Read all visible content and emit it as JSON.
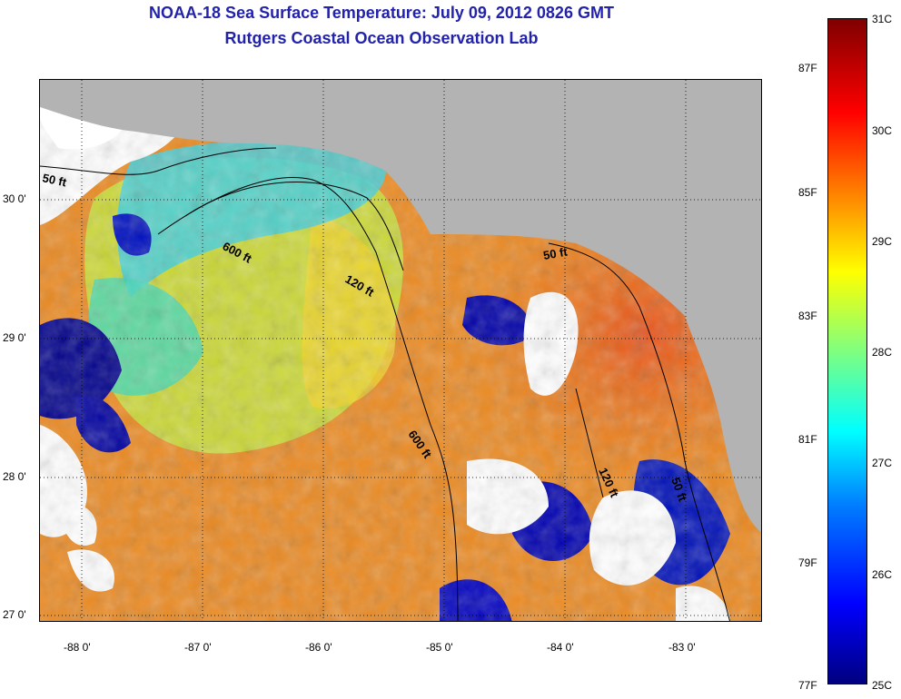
{
  "title": {
    "line1": "NOAA-18 Sea Surface Temperature:  July 09, 2012 0826 GMT",
    "line2": "Rutgers Coastal Ocean Observation Lab"
  },
  "map": {
    "x_axis_labels": [
      "-88 0'",
      "-87 0'",
      "-86 0'",
      "-85 0'",
      "-84 0'",
      "-83 0'"
    ],
    "y_axis_labels": [
      "30 0'",
      "29 0'",
      "28 0'",
      "27 0'"
    ],
    "contour_labels": {
      "c50_west": "50 ft",
      "c600_north": "600 ft",
      "c120": "120 ft",
      "c50_east": "50 ft",
      "c600_south": "600 ft",
      "c120_south": "120 ft",
      "c50_south": "50 ft"
    },
    "colors": {
      "land": "#b3b3b3",
      "no_data": "#ffffff",
      "contour": "#000000"
    }
  },
  "colorbar": {
    "celsius_labels": [
      "31C",
      "30C",
      "29C",
      "28C",
      "27C",
      "26C",
      "25C"
    ],
    "fahrenheit_labels": [
      "87F",
      "85F",
      "83F",
      "81F",
      "79F",
      "77F"
    ],
    "colormap": "jet",
    "range_c": [
      25,
      31
    ]
  }
}
